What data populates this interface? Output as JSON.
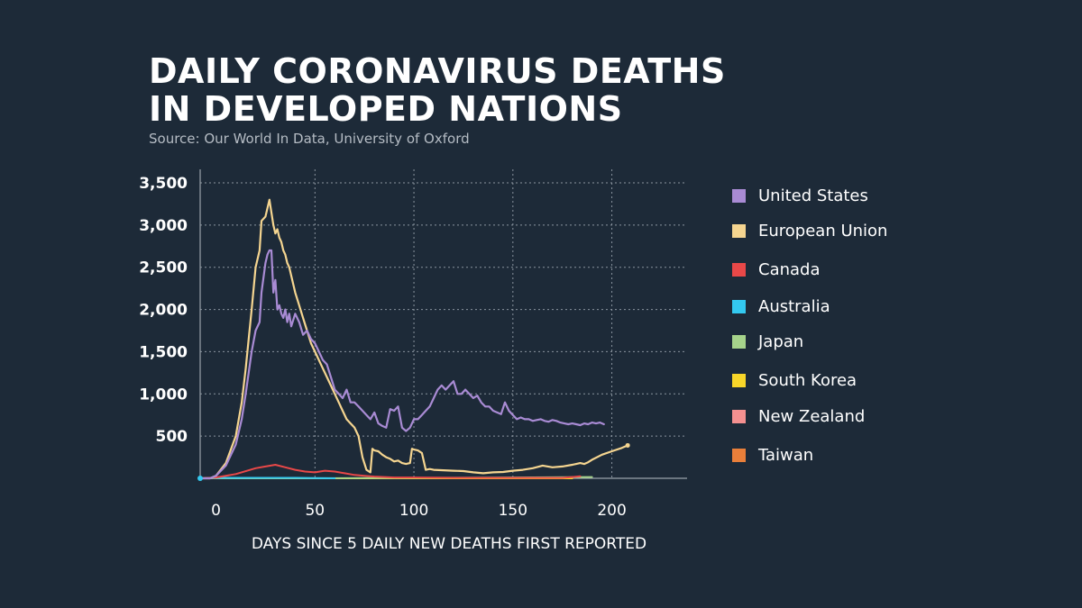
{
  "title_line1": "DAILY CORONAVIRUS DEATHS",
  "title_line2": "IN DEVELOPED NATIONS",
  "source": "Source: Our World In Data, University of Oxford",
  "chart_data": {
    "type": "line",
    "title": "DAILY CORONAVIRUS DEATHS IN DEVELOPED NATIONS",
    "xlabel": "DAYS SINCE 5 DAILY NEW DEATHS FIRST REPORTED",
    "ylabel": "",
    "xlim": [
      -8,
      238
    ],
    "ylim": [
      0,
      3500
    ],
    "x_ticks": [
      0,
      50,
      100,
      150,
      200
    ],
    "y_ticks": [
      500,
      1000,
      1500,
      2000,
      2500,
      3000,
      3500
    ],
    "x_tick_labels": [
      "0",
      "50",
      "100",
      "150",
      "200"
    ],
    "y_tick_labels": [
      "500",
      "1,000",
      "1,500",
      "2,000",
      "2,500",
      "3,000",
      "3,500"
    ],
    "grid": "dotted",
    "legend_position": "right",
    "series": [
      {
        "name": "United States",
        "color": "#a98bd4",
        "x": [
          -8,
          -3,
          0,
          5,
          10,
          13,
          15,
          18,
          20,
          22,
          23,
          25,
          26,
          27,
          28,
          29,
          30,
          31,
          32,
          33,
          34,
          35,
          36,
          37,
          38,
          40,
          42,
          44,
          46,
          48,
          50,
          52,
          54,
          56,
          58,
          60,
          62,
          64,
          66,
          68,
          70,
          72,
          74,
          76,
          78,
          80,
          82,
          84,
          86,
          88,
          90,
          92,
          94,
          96,
          98,
          100,
          102,
          104,
          106,
          108,
          110,
          112,
          114,
          116,
          118,
          120,
          122,
          124,
          126,
          128,
          130,
          132,
          134,
          136,
          138,
          140,
          142,
          144,
          146,
          148,
          150,
          152,
          154,
          156,
          158,
          160,
          162,
          164,
          166,
          168,
          170,
          172,
          174,
          176,
          178,
          180,
          182,
          184,
          186,
          188,
          190,
          192,
          194,
          196
        ],
        "y": [
          0,
          0,
          30,
          150,
          400,
          700,
          1000,
          1500,
          1750,
          1850,
          2200,
          2550,
          2650,
          2700,
          2700,
          2200,
          2350,
          2000,
          2050,
          1950,
          1900,
          2000,
          1850,
          1950,
          1800,
          1950,
          1850,
          1700,
          1750,
          1650,
          1600,
          1500,
          1400,
          1350,
          1200,
          1050,
          1000,
          950,
          1050,
          900,
          900,
          850,
          800,
          750,
          700,
          780,
          650,
          620,
          600,
          820,
          800,
          850,
          600,
          560,
          600,
          700,
          700,
          750,
          800,
          850,
          950,
          1050,
          1100,
          1050,
          1100,
          1150,
          1000,
          1000,
          1050,
          1000,
          950,
          980,
          900,
          850,
          850,
          800,
          780,
          760,
          900,
          800,
          750,
          700,
          720,
          700,
          700,
          680,
          690,
          700,
          680,
          670,
          690,
          680,
          660,
          650,
          640,
          650,
          640,
          630,
          650,
          640,
          660,
          650,
          660,
          640
        ]
      },
      {
        "name": "European Union",
        "color": "#f5d590",
        "x": [
          -8,
          -3,
          0,
          5,
          10,
          13,
          15,
          18,
          20,
          22,
          23,
          25,
          26,
          27,
          28,
          29,
          30,
          31,
          32,
          33,
          34,
          35,
          36,
          37,
          38,
          40,
          42,
          44,
          46,
          48,
          50,
          52,
          54,
          56,
          58,
          60,
          62,
          64,
          66,
          68,
          70,
          72,
          74,
          76,
          78,
          79,
          80,
          82,
          84,
          86,
          88,
          90,
          92,
          94,
          96,
          98,
          99,
          100,
          102,
          104,
          106,
          108,
          110,
          115,
          120,
          125,
          130,
          135,
          140,
          145,
          150,
          155,
          160,
          165,
          170,
          175,
          180,
          182,
          184,
          186,
          188,
          190,
          195,
          200,
          205,
          208
        ],
        "y": [
          0,
          0,
          30,
          180,
          500,
          900,
          1300,
          2000,
          2500,
          2700,
          3050,
          3100,
          3200,
          3300,
          3150,
          3000,
          2900,
          2950,
          2850,
          2800,
          2700,
          2650,
          2550,
          2500,
          2400,
          2200,
          2050,
          1900,
          1750,
          1600,
          1500,
          1400,
          1300,
          1200,
          1100,
          1000,
          900,
          800,
          700,
          650,
          600,
          500,
          250,
          100,
          70,
          350,
          330,
          320,
          280,
          250,
          230,
          200,
          210,
          180,
          170,
          180,
          350,
          340,
          330,
          300,
          100,
          110,
          100,
          95,
          90,
          85,
          70,
          60,
          70,
          75,
          90,
          100,
          120,
          150,
          130,
          140,
          160,
          170,
          180,
          170,
          190,
          220,
          280,
          320,
          360,
          390
        ]
      },
      {
        "name": "Canada",
        "color": "#e94848",
        "x": [
          -8,
          0,
          10,
          20,
          25,
          30,
          35,
          40,
          45,
          50,
          55,
          60,
          65,
          70,
          75,
          80,
          90,
          100,
          120,
          140,
          160,
          175,
          180,
          184
        ],
        "y": [
          0,
          10,
          50,
          120,
          140,
          160,
          130,
          100,
          80,
          70,
          90,
          80,
          60,
          40,
          30,
          20,
          10,
          10,
          5,
          5,
          5,
          5,
          15,
          25
        ]
      },
      {
        "name": "Australia",
        "color": "#33c9f0",
        "x": [
          -8,
          0,
          20,
          40,
          60
        ],
        "y": [
          0,
          5,
          5,
          5,
          0
        ]
      },
      {
        "name": "Japan",
        "color": "#a6d38b",
        "x": [
          -8,
          50,
          100,
          150,
          190
        ],
        "y": [
          0,
          0,
          5,
          10,
          15
        ]
      },
      {
        "name": "South Korea",
        "color": "#f8d629",
        "x": [
          -8,
          100,
          180
        ],
        "y": [
          0,
          0,
          0
        ]
      },
      {
        "name": "New Zealand",
        "color": "#f49090",
        "x": [
          -8,
          50,
          100,
          150,
          170
        ],
        "y": [
          0,
          0,
          0,
          0,
          0
        ]
      },
      {
        "name": "Taiwan",
        "color": "#e97f3a",
        "x": [
          -8,
          150,
          180
        ],
        "y": [
          0,
          0,
          0
        ]
      }
    ]
  }
}
